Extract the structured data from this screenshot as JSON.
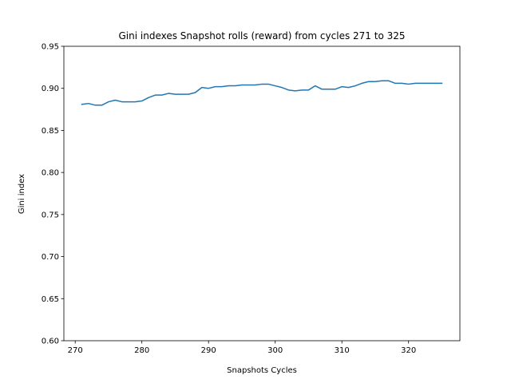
{
  "chart_data": {
    "type": "line",
    "title": "Gini indexes Snapshot rolls (reward) from cycles 271 to 325",
    "xlabel": "Snapshots Cycles",
    "ylabel": "Gini index",
    "xlim": [
      268.3,
      327.7
    ],
    "ylim": [
      0.6,
      0.95
    ],
    "xticks": [
      270,
      280,
      290,
      300,
      310,
      320
    ],
    "yticks": [
      0.6,
      0.65,
      0.7,
      0.75,
      0.8,
      0.85,
      0.9,
      0.95
    ],
    "xtick_labels": [
      "270",
      "280",
      "290",
      "300",
      "310",
      "320"
    ],
    "ytick_labels": [
      "0.60",
      "0.65",
      "0.70",
      "0.75",
      "0.80",
      "0.85",
      "0.90",
      "0.95"
    ],
    "grid": false,
    "legend": "none",
    "line_color": "#1f77b4",
    "series": [
      {
        "x": [
          271,
          272,
          273,
          274,
          275,
          276,
          277,
          278,
          279,
          280,
          281,
          282,
          283,
          284,
          285,
          286,
          287,
          288,
          289,
          290,
          291,
          292,
          293,
          294,
          295,
          296,
          297,
          298,
          299,
          300,
          301,
          302,
          303,
          304,
          305,
          306,
          307,
          308,
          309,
          310,
          311,
          312,
          313,
          314,
          315,
          316,
          317,
          318,
          319,
          320,
          321,
          322,
          323,
          324,
          325
        ],
        "y": [
          0.881,
          0.882,
          0.88,
          0.88,
          0.884,
          0.886,
          0.884,
          0.884,
          0.884,
          0.885,
          0.889,
          0.892,
          0.892,
          0.894,
          0.893,
          0.893,
          0.893,
          0.895,
          0.901,
          0.9,
          0.902,
          0.902,
          0.903,
          0.903,
          0.904,
          0.904,
          0.904,
          0.905,
          0.905,
          0.903,
          0.901,
          0.898,
          0.897,
          0.898,
          0.898,
          0.903,
          0.899,
          0.899,
          0.899,
          0.902,
          0.901,
          0.903,
          0.906,
          0.908,
          0.908,
          0.909,
          0.909,
          0.906,
          0.906,
          0.905,
          0.906,
          0.906,
          0.906,
          0.906,
          0.906
        ]
      }
    ]
  }
}
